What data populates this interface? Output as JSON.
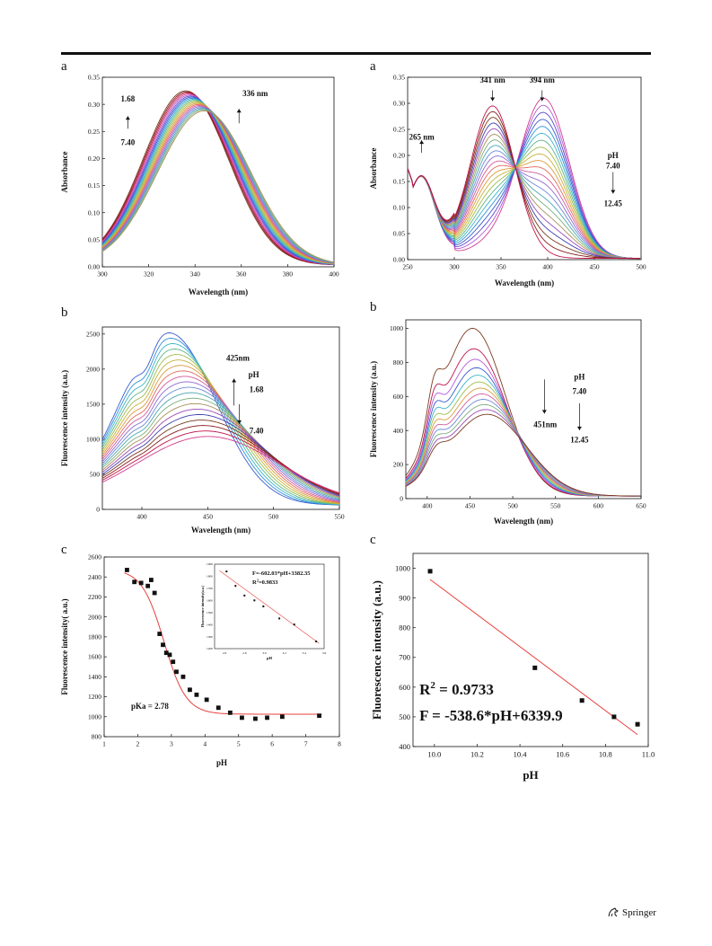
{
  "panel_letters": {
    "a_left": "a",
    "a_right": "a",
    "b_left": "b",
    "b_right": "b",
    "c_left": "c",
    "c_right": "c"
  },
  "footer": {
    "publisher": "Springer",
    "icon": "springer-horse-icon"
  },
  "chart_data": [
    {
      "id": "a_left",
      "type": "line",
      "xlabel": "Wavelength (nm)",
      "ylabel": "Absorbance",
      "xlim": [
        300,
        400
      ],
      "ylim": [
        0,
        0.35
      ],
      "xticks": [
        300,
        320,
        340,
        360,
        380,
        400
      ],
      "yticks": [
        0.0,
        0.05,
        0.1,
        0.15,
        0.2,
        0.25,
        0.3,
        0.35
      ],
      "ytick_labels": [
        "0.00",
        "0.05",
        "0.10",
        "0.15",
        "0.20",
        "0.25",
        "0.30",
        "0.35"
      ],
      "series_count": 20,
      "peak_range_nm": [
        336,
        344
      ],
      "peak_values": [
        0.285,
        0.322
      ],
      "annotations": [
        "1.68",
        "7.40",
        "336 nm"
      ],
      "arrows": [
        {
          "at": [
            311,
            0.27
          ],
          "dir": "up"
        },
        {
          "at": [
            359,
            0.275
          ],
          "dir": "up"
        }
      ]
    },
    {
      "id": "a_right",
      "type": "line",
      "xlabel": "Wavelength (nm)",
      "ylabel": "Absorbance",
      "xlim": [
        250,
        500
      ],
      "ylim": [
        0,
        0.35
      ],
      "xticks": [
        250,
        300,
        350,
        400,
        450,
        500
      ],
      "yticks": [
        0.0,
        0.05,
        0.1,
        0.15,
        0.2,
        0.25,
        0.3,
        0.35
      ],
      "ytick_labels": [
        "0.00",
        "0.05",
        "0.10",
        "0.15",
        "0.20",
        "0.25",
        "0.30",
        "0.35"
      ],
      "series_count": 22,
      "isosbestic_points": [
        [
          293,
          0.063
        ],
        [
          363,
          0.165
        ]
      ],
      "peak_341_range": [
        0.015,
        0.29
      ],
      "peak_394_range": [
        0.0,
        0.305
      ],
      "annotations": [
        "265 nm",
        "341 nm",
        "394 nm",
        "pH",
        "7.40",
        "12.45"
      ],
      "arrows": [
        {
          "at": [
            265,
            0.155
          ],
          "dir": "up"
        },
        {
          "at": [
            341,
            0.31
          ],
          "dir": "down"
        },
        {
          "at": [
            394,
            0.31
          ],
          "dir": "down"
        },
        {
          "at": [
            468,
            0.13
          ],
          "dir": "down"
        }
      ]
    },
    {
      "id": "b_left",
      "type": "line",
      "xlabel": "Wavelength (nm)",
      "ylabel": "Fluorescence intensity (a.u.)",
      "xlim": [
        370,
        550
      ],
      "ylim": [
        0,
        2600
      ],
      "xticks": [
        400,
        450,
        500,
        550
      ],
      "yticks": [
        0,
        500,
        1000,
        1500,
        2000,
        2500
      ],
      "series_count": 20,
      "peak_range_nm": [
        420,
        450
      ],
      "peak_values": [
        980,
        2460
      ],
      "isosbestic_point": [
        488,
        730
      ],
      "annotations": [
        "425nm",
        "pH",
        "1.68",
        "7.40"
      ],
      "arrows": [
        {
          "at": [
            470,
            1750
          ],
          "dir": "up"
        },
        {
          "at": [
            474,
            1100
          ],
          "dir": "down"
        }
      ]
    },
    {
      "id": "b_right",
      "type": "line",
      "xlabel": "Wavelength (nm)",
      "ylabel": "Fluorescence intensity (a.u.)",
      "xlim": [
        375,
        650
      ],
      "ylim": [
        0,
        1050
      ],
      "xticks": [
        400,
        450,
        500,
        550,
        600,
        650
      ],
      "yticks": [
        0,
        200,
        400,
        600,
        800,
        1000
      ],
      "series_count": 12,
      "peak_range_nm": [
        453,
        470
      ],
      "peak_values": [
        480,
        985
      ],
      "annotations": [
        "451nm",
        "pH",
        "7.40",
        "12.45"
      ],
      "arrows": [
        {
          "at": [
            537,
            700
          ],
          "dir": "down"
        },
        {
          "at": [
            580,
            530
          ],
          "dir": "down"
        }
      ]
    },
    {
      "id": "c_left",
      "type": "scatter",
      "xlabel": "pH",
      "ylabel": "Fluorescence intensity( a.u.)",
      "xlim": [
        1,
        8
      ],
      "ylim": [
        800,
        2600
      ],
      "xticks": [
        1,
        2,
        3,
        4,
        5,
        6,
        7,
        8
      ],
      "yticks": [
        800,
        1000,
        1200,
        1400,
        1600,
        1800,
        2000,
        2200,
        2400,
        2600
      ],
      "x": [
        1.68,
        1.9,
        2.1,
        2.3,
        2.4,
        2.5,
        2.65,
        2.75,
        2.85,
        2.95,
        3.05,
        3.15,
        3.35,
        3.55,
        3.75,
        4.05,
        4.4,
        4.75,
        5.1,
        5.5,
        5.85,
        6.3,
        7.4
      ],
      "y": [
        2470,
        2350,
        2340,
        2310,
        2370,
        2240,
        1830,
        1720,
        1640,
        1620,
        1550,
        1450,
        1400,
        1270,
        1220,
        1170,
        1090,
        1040,
        990,
        980,
        990,
        1000,
        1010
      ],
      "fit": {
        "type": "sigmoid",
        "top": 2480,
        "bottom": 1025,
        "center": 2.78,
        "width": 0.33
      },
      "annotation": "pKa = 2.78",
      "inset": {
        "xlabel": "pH",
        "ylabel": "Fluorescence intensity(a.u.)",
        "xlim": [
          2.5,
          3.6
        ],
        "ylim": [
          1200,
          1900
        ],
        "xticks": [
          2.6,
          2.8,
          3.0,
          3.2,
          3.4,
          3.6
        ],
        "xtick_labels": [
          "2.6",
          "2.8",
          "3.0",
          "3.2",
          "3.4",
          "3.6"
        ],
        "yticks": [
          1200,
          1300,
          1400,
          1500,
          1600,
          1700,
          1800,
          1900
        ],
        "x": [
          2.62,
          2.71,
          2.8,
          2.9,
          2.99,
          3.15,
          3.3,
          3.52
        ],
        "y": [
          1840,
          1720,
          1640,
          1600,
          1550,
          1450,
          1400,
          1260
        ],
        "fit_line": [
          [
            2.55,
            1846
          ],
          [
            3.55,
            1244
          ]
        ],
        "equation": "F=-602.03*pH+3382.35",
        "r2_prefix": "R",
        "r2_exp": "2",
        "r2_value": "=0.9833"
      }
    },
    {
      "id": "c_right",
      "type": "scatter",
      "xlabel": "pH",
      "ylabel": "Fluorescence intensity (a.u.)",
      "xlim": [
        9.9,
        11.0
      ],
      "ylim": [
        400,
        1050
      ],
      "xticks": [
        10.0,
        10.2,
        10.4,
        10.6,
        10.8,
        11.0
      ],
      "xtick_labels": [
        "10.0",
        "10.2",
        "10.4",
        "10.6",
        "10.8",
        "11.0"
      ],
      "yticks": [
        400,
        500,
        600,
        700,
        800,
        900,
        1000
      ],
      "x": [
        9.98,
        10.47,
        10.69,
        10.84,
        10.95
      ],
      "y": [
        990,
        665,
        555,
        500,
        475
      ],
      "fit_line": [
        [
          9.98,
          962.4
        ],
        [
          10.95,
          440
        ]
      ],
      "r2_prefix": "R",
      "r2_exp": "2",
      "r2_value": " = 0.9733",
      "equation": "F = -538.6*pH+6339.9"
    }
  ]
}
